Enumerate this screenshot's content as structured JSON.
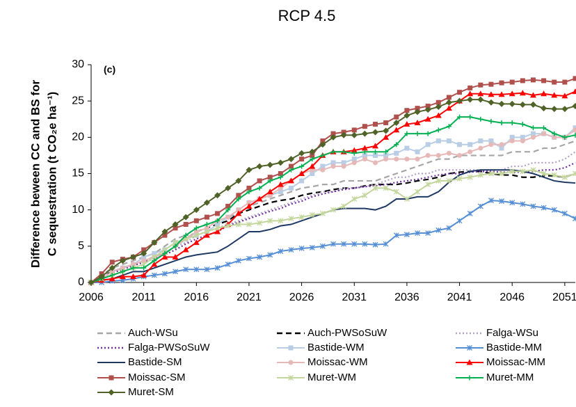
{
  "chart_data": {
    "type": "line",
    "title": "RCP 4.5",
    "y_label": [
      "Difference beween CC and BS for",
      "C sequestration (t CO₂e ha⁻¹)"
    ],
    "annotation": "(c)",
    "x": [
      2006,
      2007,
      2008,
      2009,
      2010,
      2011,
      2012,
      2013,
      2014,
      2015,
      2016,
      2017,
      2018,
      2019,
      2020,
      2021,
      2022,
      2023,
      2024,
      2025,
      2026,
      2027,
      2028,
      2029,
      2030,
      2031,
      2032,
      2033,
      2034,
      2035,
      2036,
      2037,
      2038,
      2039,
      2040,
      2041,
      2042,
      2043,
      2044,
      2045,
      2046,
      2047,
      2048,
      2049,
      2050,
      2051,
      2052
    ],
    "xlim": [
      2006,
      2052
    ],
    "xticks": [
      2006,
      2011,
      2016,
      2021,
      2026,
      2031,
      2036,
      2041,
      2046,
      2051
    ],
    "ylim": [
      0,
      30
    ],
    "yticks": [
      0,
      5,
      10,
      15,
      20,
      25,
      30
    ],
    "series": [
      {
        "name": "Auch-WSu",
        "color": "#a6a6a6",
        "dash": "8,5",
        "marker": "none",
        "values": [
          0,
          1,
          2,
          2.5,
          3,
          3.5,
          4,
          5,
          6,
          6.5,
          7.5,
          8,
          8.5,
          9,
          9.5,
          10.5,
          11,
          11.5,
          12,
          12.5,
          13,
          13.2,
          13.5,
          13.5,
          14,
          14,
          14,
          14,
          14.5,
          15,
          15.5,
          16,
          16.5,
          17,
          17,
          17.5,
          17.5,
          17.5,
          17.5,
          17.5,
          18,
          18,
          18,
          18.5,
          18.5,
          19,
          19.5
        ]
      },
      {
        "name": "Auch-PWSoSuW",
        "color": "#000000",
        "dash": "8,5",
        "marker": "none",
        "values": [
          0,
          0.8,
          1.5,
          2,
          2.5,
          3,
          3.5,
          4,
          5,
          6,
          7,
          7.5,
          8,
          8.5,
          9.5,
          10,
          10.5,
          11,
          11.3,
          11.5,
          12,
          12.3,
          12.5,
          12.8,
          13,
          13,
          13.3,
          13.5,
          13.5,
          13.5,
          13.7,
          14,
          14.2,
          14.5,
          15,
          15.2,
          15.3,
          15.3,
          15,
          14.8,
          14.8,
          14.5,
          14.5,
          14.7,
          14.7,
          14.5,
          15
        ]
      },
      {
        "name": "Falga-WSu",
        "color": "#b3a2c7",
        "dash": "2,3",
        "marker": "none",
        "values": [
          0,
          0.8,
          1.5,
          2,
          2.5,
          3,
          3.5,
          4,
          5,
          5.5,
          6.5,
          7,
          7.5,
          8,
          8.5,
          9,
          9.5,
          10,
          10.5,
          11,
          11.5,
          12,
          12.5,
          12.5,
          13,
          13,
          13.2,
          13.5,
          14,
          14.5,
          14.5,
          15,
          15,
          15.5,
          15.5,
          15.5,
          15.5,
          15.5,
          15.5,
          15.5,
          16,
          16,
          16.5,
          16.5,
          16.5,
          17,
          18
        ]
      },
      {
        "name": "Falga-PWSoSuW",
        "color": "#7030a0",
        "dash": "2,3",
        "marker": "none",
        "values": [
          0,
          0.7,
          1.3,
          1.8,
          2.3,
          2.8,
          3.3,
          3.8,
          4.5,
          5.3,
          6,
          6.5,
          7,
          7.8,
          8.3,
          8.8,
          9.3,
          9.8,
          10.2,
          10.8,
          11.2,
          11.8,
          12.2,
          12.5,
          12.8,
          13,
          13.2,
          13.3,
          13.5,
          13.8,
          14,
          14.2,
          14.5,
          14.8,
          15,
          15,
          15.2,
          15.3,
          15.3,
          15.2,
          15.2,
          15.2,
          15.3,
          15.5,
          15.5,
          15.8,
          16.5
        ]
      },
      {
        "name": "Bastide-WM",
        "color": "#b9cde5",
        "marker": "square",
        "values": [
          0,
          0.5,
          1.5,
          2,
          2.5,
          3.5,
          4,
          4.5,
          5.5,
          6,
          6.5,
          7,
          8,
          9,
          10,
          11,
          11.5,
          12,
          12.5,
          13,
          14,
          15,
          16,
          16.5,
          16.5,
          17,
          17.5,
          17.5,
          17.5,
          17.8,
          18.5,
          18,
          19,
          19.5,
          19.5,
          19,
          19,
          19.5,
          19.5,
          18.5,
          20,
          20,
          20.5,
          20.5,
          20,
          20,
          21.3
        ]
      },
      {
        "name": "Bastide-MM",
        "color": "#558ed5",
        "marker": "x",
        "values": [
          0,
          0,
          0.2,
          0.3,
          0.5,
          0.8,
          1,
          1.2,
          1.5,
          1.8,
          1.8,
          1.8,
          2,
          2.5,
          3,
          3.3,
          3.5,
          3.8,
          4.3,
          4.5,
          4.7,
          4.8,
          5,
          5.3,
          5.3,
          5.3,
          5.3,
          5.2,
          5.3,
          6.5,
          6.6,
          6.8,
          6.8,
          7.2,
          7.5,
          8.5,
          9.5,
          10.5,
          11.3,
          11.2,
          11,
          10.8,
          10.5,
          10.3,
          10,
          9.5,
          8.8
        ]
      },
      {
        "name": "Bastide-SM",
        "color": "#1f3864",
        "marker": "none",
        "values": [
          0,
          0.3,
          0.5,
          1,
          1.5,
          1.5,
          2,
          2.5,
          3,
          3.5,
          3.8,
          4,
          4.2,
          5,
          6,
          7,
          7,
          7.3,
          7.8,
          8,
          8.5,
          9,
          9.5,
          10,
          10.2,
          10.2,
          10.2,
          10,
          10.5,
          11.5,
          11.5,
          11.8,
          11.8,
          12.5,
          13.8,
          14.8,
          15.3,
          15.5,
          15.5,
          15.5,
          15.5,
          15.3,
          15,
          14.5,
          14,
          13.8,
          13.7
        ]
      },
      {
        "name": "Moissac-WM",
        "color": "#e6b9b8",
        "marker": "circle",
        "values": [
          0,
          0.5,
          1.5,
          2,
          2.5,
          3,
          3.5,
          4,
          5,
          6,
          7,
          7.5,
          8.5,
          9,
          10,
          11,
          11.5,
          12,
          13,
          14,
          15,
          15.5,
          15.5,
          16,
          16,
          16.5,
          17,
          16.5,
          17,
          17,
          17,
          17,
          17.5,
          17.5,
          17.8,
          17.5,
          18,
          18.5,
          19,
          19,
          19.5,
          19.5,
          20,
          20.5,
          20,
          20,
          21
        ]
      },
      {
        "name": "Moissac-MM",
        "color": "#ff0000",
        "marker": "triangle",
        "values": [
          0,
          0.3,
          0.5,
          0.8,
          0.8,
          1,
          2.5,
          3.5,
          3.5,
          4.5,
          5.5,
          6.5,
          7,
          8,
          9.5,
          10.5,
          11.5,
          12.5,
          13.5,
          14,
          15,
          16,
          17.5,
          18,
          18,
          18.2,
          18.5,
          18.8,
          20,
          21,
          21.8,
          22,
          22.5,
          23,
          24,
          25,
          26,
          26,
          25.9,
          25.9,
          26,
          26.1,
          25.8,
          26,
          25.8,
          25.7,
          26.3
        ]
      },
      {
        "name": "Moissac-SM",
        "color": "#b0504c",
        "marker": "square",
        "values": [
          0,
          1.2,
          2.8,
          3.2,
          3.5,
          4.5,
          5.5,
          6.5,
          7.5,
          8,
          8.5,
          9,
          9.5,
          10.5,
          12,
          13,
          14,
          14.5,
          15,
          16,
          17,
          17.5,
          19.5,
          20.5,
          20.7,
          21,
          21.5,
          21.8,
          22,
          22.8,
          23.7,
          24,
          24.3,
          24.8,
          25.5,
          26.2,
          26.8,
          27.2,
          27.3,
          27.5,
          27.6,
          27.8,
          27.9,
          27.8,
          27.6,
          27.6,
          28.1
        ]
      },
      {
        "name": "Muret-WM",
        "color": "#c3d69b",
        "marker": "x",
        "values": [
          0,
          0.5,
          1,
          1.5,
          2,
          2.5,
          3.5,
          4.5,
          5.5,
          6,
          6.5,
          7,
          7.5,
          7.8,
          8,
          8,
          8.2,
          8.5,
          8.5,
          8.8,
          9,
          9.3,
          9.5,
          10,
          10.5,
          11.5,
          12,
          13,
          13,
          12.5,
          11.5,
          12.5,
          13.5,
          14,
          14,
          14.3,
          14.5,
          14.8,
          15,
          15,
          15.3,
          15.3,
          15.5,
          15,
          14.8,
          14.5,
          15
        ]
      },
      {
        "name": "Muret-MM",
        "color": "#00b050",
        "marker": "plus",
        "values": [
          0,
          0.5,
          1,
          1.5,
          2,
          2,
          3,
          4,
          5,
          6.5,
          7.5,
          8,
          8.5,
          10,
          11.5,
          12.5,
          13,
          14,
          14.5,
          15.5,
          16,
          17,
          17.5,
          18,
          18,
          17.8,
          18,
          18,
          18,
          19,
          20.5,
          20.5,
          20.5,
          21,
          21.5,
          22.8,
          22.8,
          22.5,
          22.2,
          22,
          22,
          21.8,
          21.3,
          21.3,
          20.5,
          20,
          20.3
        ]
      },
      {
        "name": "Muret-SM",
        "color": "#4f6228",
        "marker": "diamond",
        "values": [
          0,
          0.8,
          2,
          3,
          3.5,
          4,
          5.5,
          7,
          8,
          9,
          10,
          11,
          12,
          13,
          14,
          15.5,
          16,
          16.2,
          16.5,
          17,
          17.8,
          18,
          19,
          20,
          20.3,
          20.3,
          20.5,
          20.7,
          20.9,
          22,
          23,
          23.5,
          23.8,
          24.2,
          24.8,
          25,
          25.2,
          25.2,
          24.8,
          24.6,
          24.6,
          24.5,
          24.5,
          24,
          23.9,
          23.9,
          24.3
        ]
      }
    ]
  }
}
